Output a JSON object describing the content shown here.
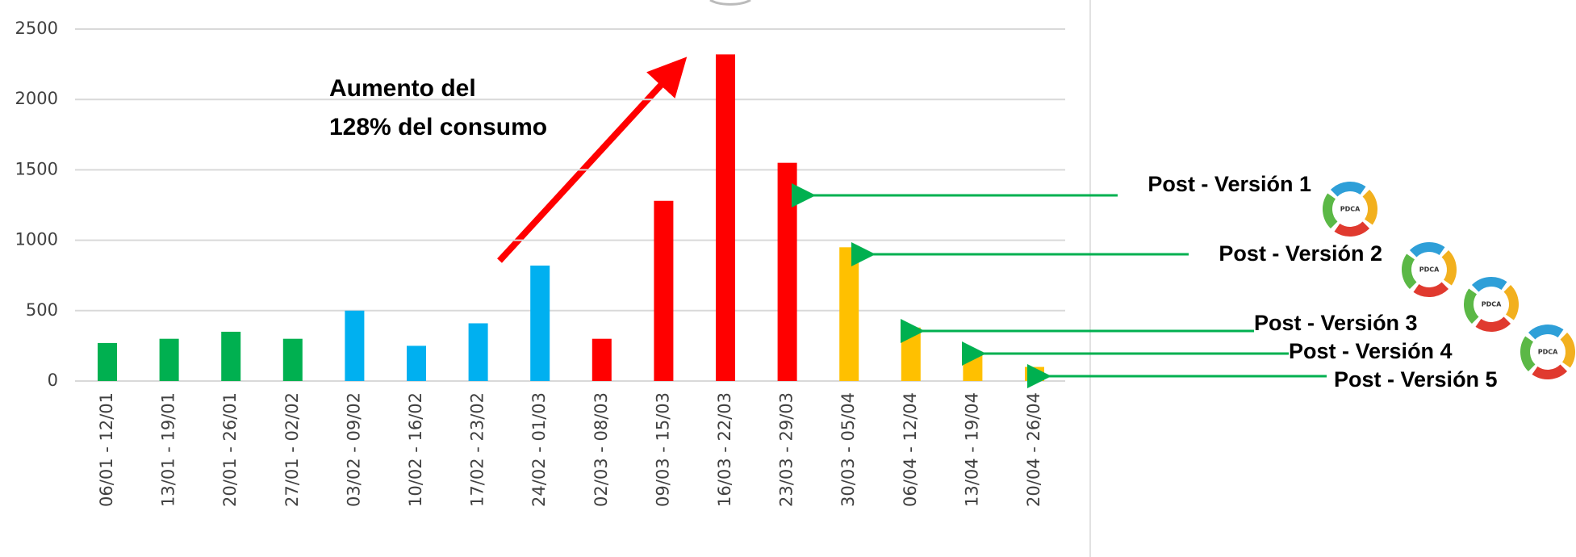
{
  "chart_data": {
    "type": "bar",
    "categories": [
      "06/01 - 12/01",
      "13/01 - 19/01",
      "20/01 - 26/01",
      "27/01 - 02/02",
      "03/02 - 09/02",
      "10/02 - 16/02",
      "17/02 - 23/02",
      "24/02 - 01/03",
      "02/03 - 08/03",
      "09/03 - 15/03",
      "16/03 - 22/03",
      "23/03 - 29/03",
      "30/03 - 05/04",
      "06/04 - 12/04",
      "13/04 - 19/04",
      "20/04 - 26/04"
    ],
    "values": [
      270,
      300,
      350,
      300,
      500,
      250,
      410,
      820,
      300,
      1280,
      2320,
      1550,
      950,
      380,
      210,
      100
    ],
    "colors": [
      "#00b050",
      "#00b050",
      "#00b050",
      "#00b050",
      "#00b0f0",
      "#00b0f0",
      "#00b0f0",
      "#00b0f0",
      "#ff0000",
      "#ff0000",
      "#ff0000",
      "#ff0000",
      "#ffc000",
      "#ffc000",
      "#ffc000",
      "#ffc000"
    ],
    "ylim": [
      0,
      2500
    ],
    "yticks": [
      0,
      500,
      1000,
      1500,
      2000,
      2500
    ],
    "grid": true,
    "annotation": [
      "Aumento del",
      "128% del consumo"
    ],
    "callouts": [
      "Post - Versión 1",
      "Post - Versión 2",
      "Post - Versión 3",
      "Post - Versión 4",
      "Post - Versión 5"
    ],
    "icon_label": "PDCA"
  }
}
